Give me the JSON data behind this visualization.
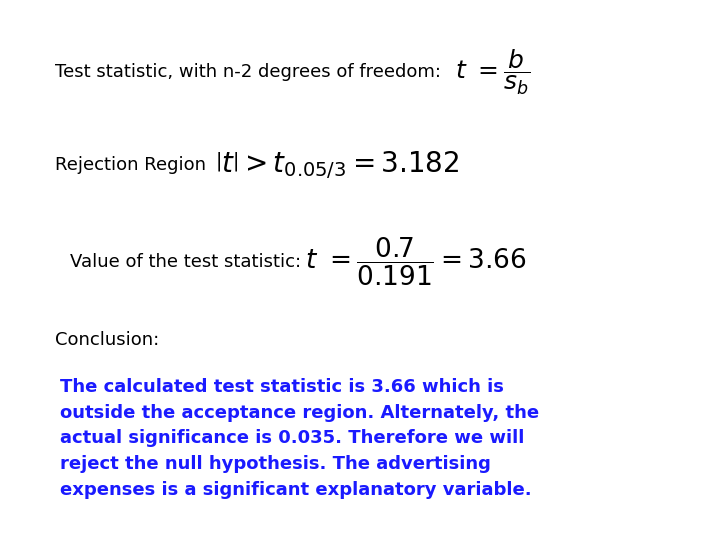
{
  "background_color": "#ffffff",
  "title_text": "Test statistic, with n-2 degrees of freedom:",
  "title_formula": "$t\\ =\\dfrac{b}{s_b}$",
  "rejection_label": "Rejection Region",
  "rejection_formula": "$\\left|t\\right| > t_{0.05/3} = 3.182$",
  "value_label": "Value of the test statistic:",
  "value_formula": "$t\\ =\\dfrac{0.7}{0.191} = 3.66$",
  "conclusion_label": "Conclusion:",
  "conclusion_text": "The calculated test statistic is 3.66 which is\noutside the acceptance region. Alternately, the\nactual significance is 0.035. Therefore we will\nreject the null hypothesis. The advertising\nexpenses is a significant explanatory variable.",
  "black_color": "#000000",
  "blue_color": "#1a1aff",
  "font_size_label": 13,
  "font_size_formula_row1": 14,
  "font_size_formula_row2": 16,
  "font_size_formula_row3": 15,
  "font_size_conclusion_label": 13,
  "font_size_conclusion": 13
}
